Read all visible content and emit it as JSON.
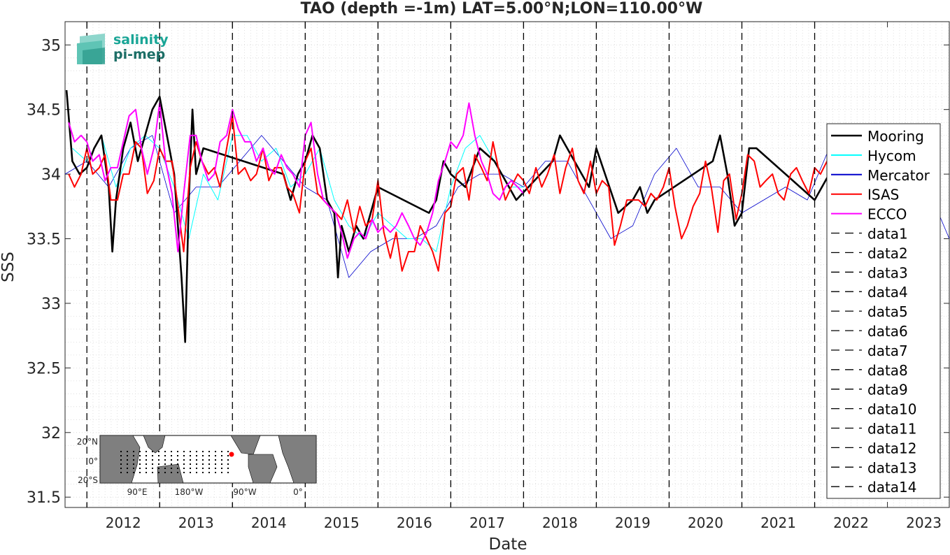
{
  "chart_data": {
    "type": "line",
    "title": "TAO (depth =-1m) LAT=5.00°N;LON=110.00°W",
    "xlabel": "Date",
    "ylabel": "SSS",
    "xlim": [
      2011.7,
      2023.85
    ],
    "ylim": [
      31.42,
      35.18
    ],
    "x_ticks": [
      "2012",
      "2013",
      "2014",
      "2015",
      "2016",
      "2017",
      "2018",
      "2019",
      "2020",
      "2021",
      "2022",
      "2023"
    ],
    "y_ticks": [
      "31.5",
      "32",
      "32.5",
      "33",
      "33.5",
      "34",
      "34.5",
      "35"
    ],
    "grid": "on (dotted minor grid)",
    "legend_position": "east (inside right)",
    "vertical_dashed_lines": [
      2012,
      2013,
      2014,
      2015,
      2016,
      2017,
      2018,
      2019,
      2020,
      2021,
      2022
    ],
    "series": [
      {
        "name": "Mooring",
        "color": "#000000",
        "x": [
          2011.72,
          2011.8,
          2011.9,
          2012.0,
          2012.1,
          2012.2,
          2012.3,
          2012.35,
          2012.4,
          2012.5,
          2012.6,
          2012.7,
          2012.8,
          2012.9,
          2013.0,
          2013.1,
          2013.2,
          2013.25,
          2013.3,
          2013.35,
          2013.4,
          2013.45,
          2013.5,
          2013.6,
          2014.7,
          2014.8,
          2014.9,
          2015.0,
          2015.1,
          2015.2,
          2015.3,
          2015.4,
          2015.45,
          2015.5,
          2015.6,
          2015.7,
          2015.8,
          2015.9,
          2016.0,
          2016.7,
          2016.8,
          2016.9,
          2017.0,
          2017.2,
          2017.4,
          2017.6,
          2017.8,
          2017.9,
          2018.4,
          2018.5,
          2018.6,
          2018.7,
          2018.8,
          2018.9,
          2019.0,
          2019.3,
          2019.5,
          2019.6,
          2019.7,
          2019.8,
          2020.6,
          2020.7,
          2020.8,
          2020.9,
          2021.0,
          2021.1,
          2021.2,
          2022.0,
          2022.1,
          2022.2
        ],
        "y": [
          34.65,
          34.1,
          34.0,
          34.05,
          34.2,
          34.3,
          33.9,
          33.4,
          33.8,
          34.2,
          34.4,
          34.1,
          34.3,
          34.5,
          34.6,
          34.3,
          34.0,
          33.6,
          33.2,
          32.7,
          33.8,
          34.5,
          34.0,
          34.2,
          34.0,
          33.8,
          34.0,
          34.1,
          34.3,
          34.2,
          33.8,
          33.7,
          33.2,
          33.6,
          33.4,
          33.6,
          33.5,
          33.7,
          33.9,
          33.7,
          33.8,
          34.1,
          34.0,
          33.9,
          34.2,
          34.1,
          33.9,
          33.8,
          34.1,
          34.3,
          34.2,
          34.1,
          34.0,
          33.9,
          34.2,
          33.7,
          33.8,
          33.9,
          33.7,
          33.8,
          34.1,
          34.3,
          34.0,
          33.6,
          33.7,
          34.2,
          34.2,
          33.8,
          33.9,
          34.0
        ]
      },
      {
        "name": "Hycom",
        "color": "#00ffff",
        "x": [
          2011.8,
          2012.0,
          2012.2,
          2012.4,
          2012.6,
          2012.8,
          2013.0,
          2013.2,
          2013.4,
          2013.6,
          2013.8,
          2014.0,
          2014.2,
          2014.4,
          2014.6,
          2014.8,
          2015.0,
          2015.2,
          2015.4,
          2015.6,
          2015.8,
          2016.0,
          2016.2,
          2016.4,
          2016.6,
          2016.8,
          2017.0,
          2017.2,
          2017.4,
          2017.6,
          2017.8,
          2018.0
        ],
        "y": [
          34.2,
          34.1,
          34.3,
          33.9,
          34.2,
          34.3,
          34.2,
          33.9,
          33.5,
          34.0,
          33.8,
          34.3,
          34.3,
          34.1,
          34.2,
          33.9,
          34.0,
          34.2,
          33.8,
          33.6,
          33.5,
          33.7,
          33.6,
          33.5,
          33.5,
          33.4,
          33.9,
          34.2,
          34.3,
          34.1,
          33.9,
          33.9
        ]
      },
      {
        "name": "Mercator",
        "color": "#0000cc",
        "x": [
          2011.7,
          2012.0,
          2012.3,
          2012.6,
          2012.9,
          2013.2,
          2013.5,
          2013.8,
          2014.1,
          2014.4,
          2014.7,
          2015.0,
          2015.3,
          2015.6,
          2015.9,
          2016.2,
          2016.5,
          2016.8,
          2017.1,
          2017.4,
          2017.7,
          2018.0,
          2018.3,
          2018.6,
          2018.9,
          2019.2,
          2019.5,
          2019.8,
          2020.1,
          2020.4,
          2020.7,
          2021.0,
          2021.3,
          2021.6,
          2021.9,
          2022.2,
          2022.5,
          2022.8,
          2023.1,
          2023.4,
          2023.7,
          2023.85
        ],
        "y": [
          34.0,
          34.1,
          33.9,
          34.2,
          34.3,
          33.7,
          33.9,
          33.9,
          34.1,
          34.3,
          34.1,
          33.9,
          33.8,
          33.2,
          33.4,
          33.5,
          33.5,
          33.6,
          33.9,
          34.0,
          34.0,
          33.9,
          34.1,
          34.1,
          33.8,
          33.5,
          33.6,
          34.0,
          34.2,
          33.9,
          33.9,
          33.7,
          33.8,
          33.9,
          33.8,
          34.2,
          34.0,
          34.2,
          33.9,
          34.0,
          33.7,
          33.5
        ]
      },
      {
        "name": "ISAS",
        "color": "#ff0000",
        "x": [
          2011.75,
          2011.83,
          2011.92,
          2012.0,
          2012.08,
          2012.17,
          2012.25,
          2012.33,
          2012.42,
          2012.5,
          2012.58,
          2012.67,
          2012.75,
          2012.83,
          2012.92,
          2013.0,
          2013.08,
          2013.17,
          2013.25,
          2013.33,
          2013.42,
          2013.5,
          2013.58,
          2013.67,
          2013.75,
          2013.83,
          2013.92,
          2014.0,
          2014.08,
          2014.17,
          2014.25,
          2014.33,
          2014.42,
          2014.5,
          2014.58,
          2014.67,
          2014.75,
          2014.83,
          2014.92,
          2015.0,
          2015.08,
          2015.17,
          2015.25,
          2015.33,
          2015.42,
          2015.5,
          2015.58,
          2015.67,
          2015.75,
          2015.83,
          2015.92,
          2016.0,
          2016.08,
          2016.17,
          2016.25,
          2016.33,
          2016.42,
          2016.5,
          2016.58,
          2016.67,
          2016.75,
          2016.83,
          2016.92,
          2017.0,
          2017.08,
          2017.17,
          2017.25,
          2017.33,
          2017.42,
          2017.5,
          2017.58,
          2017.67,
          2017.75,
          2017.83,
          2017.92,
          2018.0,
          2018.08,
          2018.17,
          2018.25,
          2018.33,
          2018.42,
          2018.5,
          2018.58,
          2018.67,
          2018.75,
          2018.83,
          2018.92,
          2019.0,
          2019.08,
          2019.17,
          2019.25,
          2019.33,
          2019.42,
          2019.5,
          2019.58,
          2019.67,
          2019.75,
          2019.83,
          2019.92,
          2020.0,
          2020.08,
          2020.17,
          2020.25,
          2020.33,
          2020.42,
          2020.5,
          2020.58,
          2020.67,
          2020.75,
          2020.83,
          2020.92,
          2021.0,
          2021.08,
          2021.17,
          2021.25,
          2021.33,
          2021.42,
          2021.5,
          2021.58,
          2021.67,
          2021.75,
          2021.83,
          2021.92,
          2022.0,
          2022.08,
          2022.17
        ],
        "y": [
          34.0,
          33.9,
          34.0,
          34.2,
          34.0,
          34.05,
          34.15,
          33.8,
          33.8,
          34.0,
          34.0,
          34.25,
          34.2,
          33.85,
          33.95,
          34.2,
          34.1,
          34.1,
          33.75,
          33.4,
          34.05,
          34.25,
          34.1,
          34.0,
          34.05,
          33.9,
          34.2,
          34.45,
          34.0,
          34.05,
          33.95,
          34.0,
          34.2,
          33.95,
          34.05,
          34.05,
          33.9,
          33.85,
          33.7,
          34.1,
          34.2,
          33.85,
          33.8,
          33.75,
          33.7,
          33.65,
          33.8,
          33.55,
          33.75,
          33.6,
          33.65,
          33.95,
          33.55,
          33.35,
          33.55,
          33.25,
          33.4,
          33.4,
          33.6,
          33.5,
          33.4,
          33.25,
          33.7,
          33.75,
          34.0,
          34.05,
          33.8,
          34.15,
          34.05,
          33.95,
          34.25,
          34.0,
          33.8,
          33.9,
          34.0,
          33.95,
          33.85,
          34.05,
          33.9,
          34.0,
          34.15,
          33.85,
          34.05,
          34.2,
          33.95,
          33.85,
          34.1,
          33.85,
          33.95,
          33.9,
          33.45,
          33.6,
          33.8,
          33.8,
          33.8,
          33.75,
          33.85,
          33.8,
          33.9,
          34.05,
          33.75,
          33.5,
          33.6,
          33.75,
          33.85,
          34.1,
          33.9,
          33.55,
          33.95,
          34.0,
          33.65,
          33.85,
          34.15,
          34.1,
          33.9,
          33.95,
          34.0,
          33.85,
          33.8,
          34.0,
          34.05,
          33.95,
          33.85,
          34.05,
          34.0,
          34.1
        ]
      },
      {
        "name": "ECCO",
        "color": "#ff00ff",
        "x": [
          2011.75,
          2011.83,
          2011.92,
          2012.0,
          2012.08,
          2012.17,
          2012.25,
          2012.33,
          2012.42,
          2012.5,
          2012.58,
          2012.67,
          2012.75,
          2012.83,
          2012.92,
          2013.0,
          2013.08,
          2013.17,
          2013.25,
          2013.33,
          2013.42,
          2013.5,
          2013.58,
          2013.67,
          2013.75,
          2013.83,
          2013.92,
          2014.0,
          2014.08,
          2014.17,
          2014.25,
          2014.33,
          2014.42,
          2014.5,
          2014.58,
          2014.67,
          2014.75,
          2014.83,
          2014.92,
          2015.0,
          2015.08,
          2015.17,
          2015.25,
          2015.33,
          2015.42,
          2015.5,
          2015.58,
          2015.67,
          2015.75,
          2015.83,
          2015.92,
          2016.0,
          2016.08,
          2016.17,
          2016.25,
          2016.33,
          2016.42,
          2016.5,
          2016.58,
          2016.67,
          2016.75,
          2016.83,
          2016.92,
          2017.0,
          2017.08,
          2017.17,
          2017.25,
          2017.33,
          2017.42,
          2017.5,
          2017.58,
          2017.67,
          2017.75,
          2017.83,
          2017.92,
          2018.0
        ],
        "y": [
          34.4,
          34.25,
          34.3,
          34.25,
          34.1,
          34.15,
          33.95,
          34.05,
          34.05,
          34.25,
          34.45,
          34.5,
          34.2,
          34.0,
          34.2,
          34.55,
          34.1,
          33.85,
          33.4,
          33.85,
          34.3,
          34.3,
          34.1,
          33.95,
          34.0,
          34.25,
          34.3,
          34.5,
          34.35,
          34.25,
          34.25,
          34.1,
          34.2,
          34.05,
          34.0,
          34.15,
          34.05,
          34.0,
          33.9,
          34.3,
          34.4,
          34.0,
          33.8,
          33.75,
          33.7,
          33.55,
          33.35,
          33.5,
          33.55,
          33.5,
          33.65,
          33.55,
          33.6,
          33.55,
          33.6,
          33.7,
          33.6,
          33.5,
          33.45,
          33.55,
          33.7,
          33.95,
          34.1,
          34.25,
          34.2,
          34.3,
          34.55,
          34.3,
          34.1,
          34.0,
          33.85,
          33.8,
          33.9,
          33.95,
          33.9,
          33.85
        ]
      },
      {
        "name": "data1",
        "color": "#000000",
        "x": [
          2012
        ],
        "y": [
          33.8
        ]
      },
      {
        "name": "data2",
        "color": "#000000",
        "x": [
          2013
        ],
        "y": [
          33.8
        ]
      },
      {
        "name": "data3",
        "color": "#000000",
        "x": [
          2014
        ],
        "y": [
          33.8
        ]
      },
      {
        "name": "data4",
        "color": "#000000",
        "x": [
          2015
        ],
        "y": [
          33.8
        ]
      },
      {
        "name": "data5",
        "color": "#000000",
        "x": [
          2016
        ],
        "y": [
          33.8
        ]
      },
      {
        "name": "data6",
        "color": "#000000",
        "x": [
          2017
        ],
        "y": [
          33.8
        ]
      },
      {
        "name": "data7",
        "color": "#000000",
        "x": [
          2018
        ],
        "y": [
          33.8
        ]
      },
      {
        "name": "data8",
        "color": "#000000",
        "x": [
          2019
        ],
        "y": [
          33.8
        ]
      },
      {
        "name": "data9",
        "color": "#000000",
        "x": [
          2020
        ],
        "y": [
          33.8
        ]
      },
      {
        "name": "data10",
        "color": "#000000",
        "x": [
          2021
        ],
        "y": [
          33.8
        ]
      },
      {
        "name": "data11",
        "color": "#000000",
        "x": [
          2022
        ],
        "y": [
          33.8
        ]
      },
      {
        "name": "data12",
        "color": "#000000",
        "x": [
          2022
        ],
        "y": [
          33.8
        ]
      },
      {
        "name": "data13",
        "color": "#000000",
        "x": [
          2022
        ],
        "y": [
          33.8
        ]
      },
      {
        "name": "data14",
        "color": "#000000",
        "x": [
          2022
        ],
        "y": [
          33.8
        ]
      }
    ],
    "legend_entries": [
      "Mooring",
      "Hycom",
      "Mercator",
      "ISAS",
      "ECCO",
      "data1",
      "data2",
      "data3",
      "data4",
      "data5",
      "data6",
      "data7",
      "data8",
      "data9",
      "data10",
      "data11",
      "data12",
      "data13",
      "data14"
    ],
    "logo": {
      "line1": "salinity",
      "line2": "pi-mep",
      "color": "#19a596"
    },
    "inset_map": {
      "y_labels": [
        "20°N",
        "0°",
        "20°S"
      ],
      "x_labels": [
        "90°E",
        "180°W",
        "90°W",
        "0°"
      ],
      "marker_color": "#ff0000"
    }
  }
}
